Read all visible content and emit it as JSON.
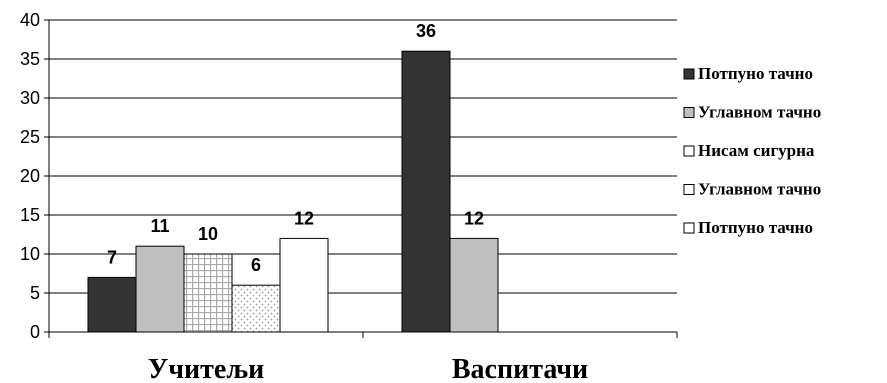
{
  "chart_data": {
    "type": "bar",
    "categories": [
      "Учитељи",
      "Васпитачи"
    ],
    "series": [
      {
        "name": "Потпуно тачно",
        "values": [
          7,
          36
        ],
        "fill": "#333333",
        "pattern": "solid"
      },
      {
        "name": "Углавном тачно",
        "values": [
          11,
          12
        ],
        "fill": "#c0c0c0",
        "pattern": "solid"
      },
      {
        "name": "Нисам сигурна",
        "values": [
          10,
          null
        ],
        "fill": "#ffffff",
        "pattern": "grid"
      },
      {
        "name": "Углавном тачно",
        "values": [
          6,
          null
        ],
        "fill": "#ffffff",
        "pattern": "dots"
      },
      {
        "name": "Потпуно тачно",
        "values": [
          12,
          null
        ],
        "fill": "#ffffff",
        "pattern": "solid"
      }
    ],
    "yticks": [
      0,
      5,
      10,
      15,
      20,
      25,
      30,
      35,
      40
    ],
    "ylim": [
      0,
      40
    ],
    "grid": true,
    "data_labels": true,
    "legend_position": "right"
  }
}
